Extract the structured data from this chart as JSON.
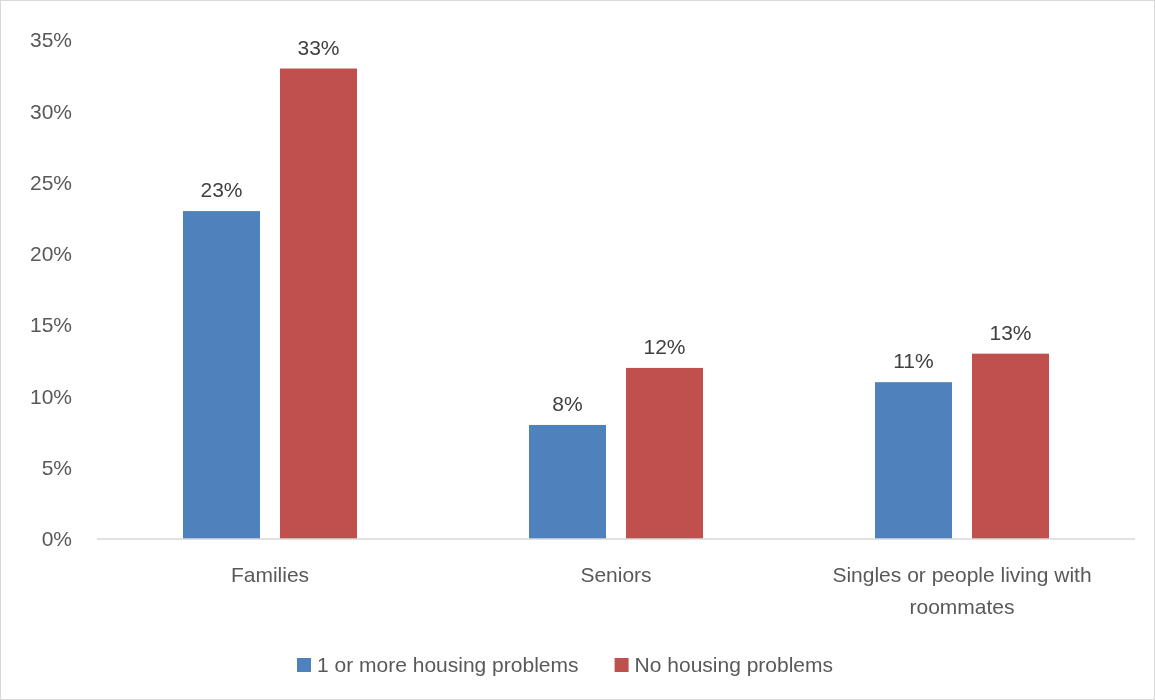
{
  "chart_data": {
    "type": "bar",
    "categories": [
      "Families",
      "Seniors",
      "Singles or people living with roommates"
    ],
    "series": [
      {
        "name": "1 or more housing problems",
        "color": "#4f81bd",
        "values": [
          23,
          8,
          11
        ],
        "value_labels": [
          "23%",
          "8%",
          "11%"
        ]
      },
      {
        "name": "No housing problems",
        "color": "#c0504d",
        "values": [
          33,
          12,
          13
        ],
        "value_labels": [
          "33%",
          "12%",
          "13%"
        ]
      }
    ],
    "ylim": [
      0,
      35
    ],
    "yticks": [
      {
        "value": 0,
        "label": "0%"
      },
      {
        "value": 5,
        "label": "5%"
      },
      {
        "value": 10,
        "label": "10%"
      },
      {
        "value": 15,
        "label": "15%"
      },
      {
        "value": 20,
        "label": "20%"
      },
      {
        "value": 25,
        "label": "25%"
      },
      {
        "value": 30,
        "label": "30%"
      },
      {
        "value": 35,
        "label": "35%"
      }
    ],
    "grid": false,
    "legend": "bottom"
  }
}
